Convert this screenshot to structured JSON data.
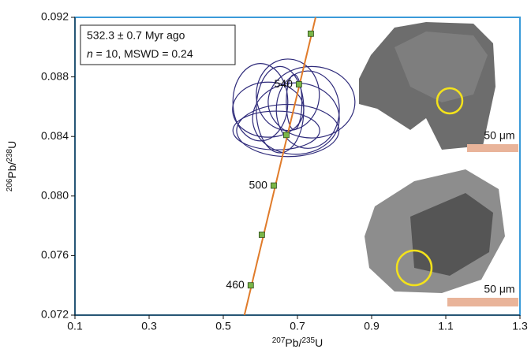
{
  "chart_data": {
    "type": "concordia",
    "annotation": {
      "line1": "532.3 ± 0.7 Myr ago",
      "line2_italic": "n",
      "line2_rest": " = 10, MSWD = 0.24"
    },
    "x_label_parts": [
      "207",
      "Pb/",
      "235",
      "U"
    ],
    "y_label_parts": [
      "206",
      "Pb/",
      "238",
      "U"
    ],
    "xlim": [
      0.1,
      1.3
    ],
    "ylim": [
      0.072,
      0.092
    ],
    "xticks": [
      0.1,
      0.3,
      0.5,
      0.7,
      0.9,
      1.1,
      1.3
    ],
    "yticks": [
      0.072,
      0.076,
      {
        "value": 0.08,
        "label": "0.080"
      },
      0.084,
      0.088,
      0.092
    ],
    "concordia": {
      "color": "#e07b2a",
      "x": [
        0.557,
        0.749
      ],
      "y": [
        0.072,
        0.092
      ]
    },
    "points": {
      "color": "#7ab648",
      "x": [
        0.574,
        0.604,
        0.636,
        0.67,
        0.704,
        0.736
      ],
      "y": [
        0.074,
        0.0774,
        0.0807,
        0.0841,
        0.0875,
        0.0909
      ],
      "labels": [
        "460",
        null,
        "500",
        null,
        "540",
        null
      ]
    },
    "ellipses": {
      "color": "#2e2a7a",
      "cx": [
        0.674,
        0.696,
        0.738,
        0.621,
        0.6,
        0.674,
        0.728,
        0.691,
        0.643,
        0.653
      ],
      "cy": [
        0.0844,
        0.0852,
        0.0863,
        0.0858,
        0.0863,
        0.0868,
        0.0858,
        0.0863,
        0.0844,
        0.0858
      ],
      "rx": [
        0.138,
        0.117,
        0.117,
        0.096,
        0.074,
        0.085,
        0.085,
        0.021,
        0.117,
        0.064
      ],
      "ry": [
        0.00175,
        0.0024,
        0.0024,
        0.00185,
        0.0026,
        0.0024,
        0.0026,
        0.00185,
        0.0013,
        0.0029
      ]
    },
    "scale_bars": [
      "50 μm",
      "50 μm"
    ]
  }
}
